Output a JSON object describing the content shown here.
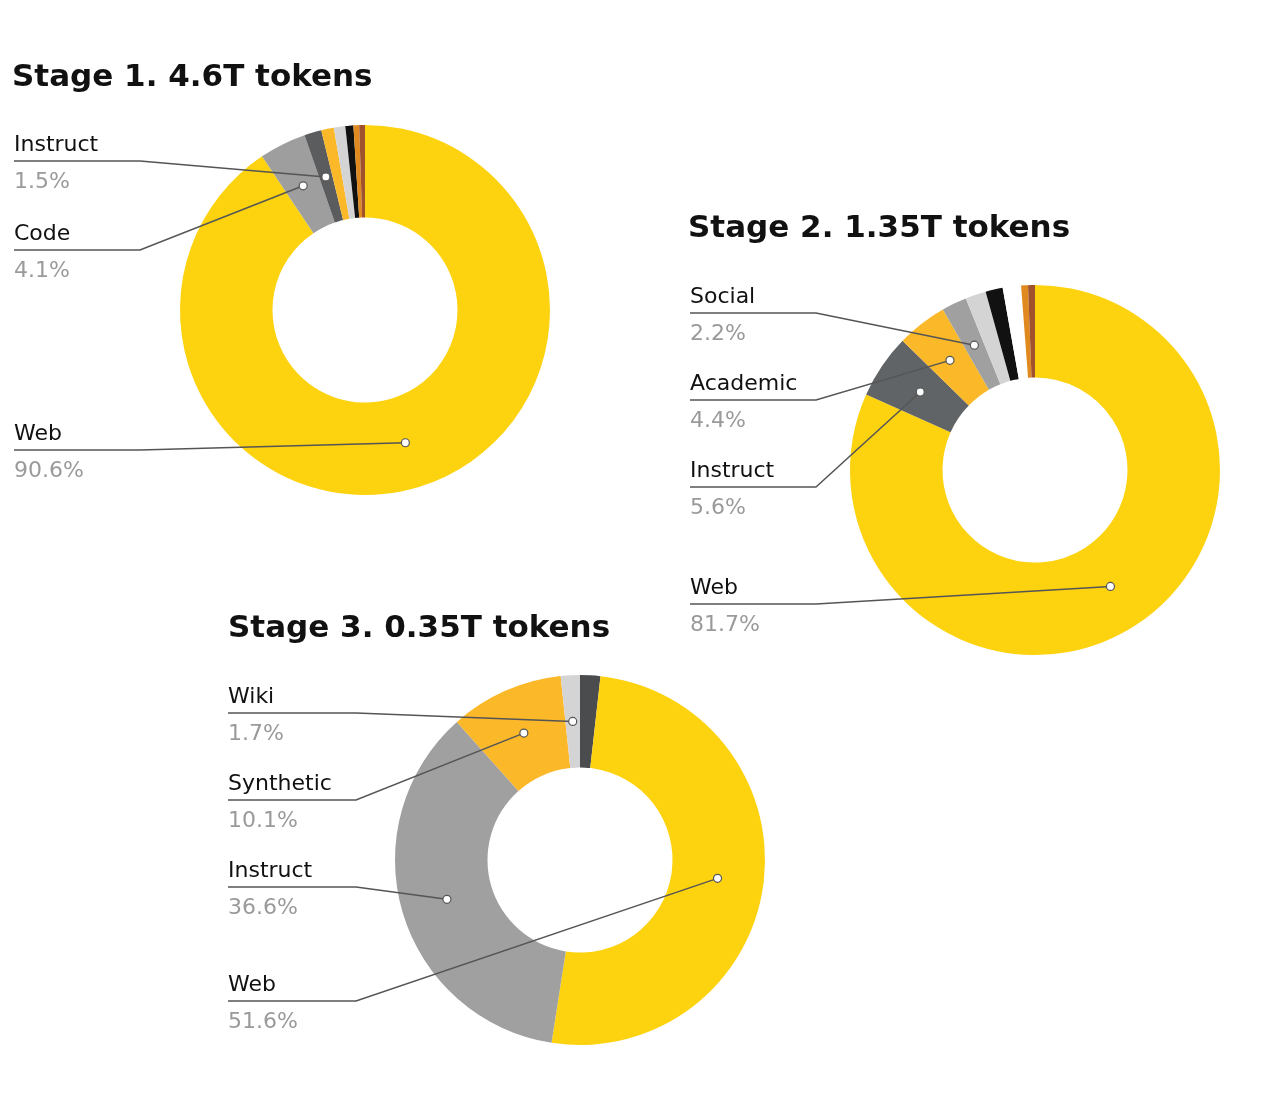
{
  "chart_data": [
    {
      "type": "doughnut",
      "title": "Stage 1. 4.6T tokens",
      "categories": [
        "Web",
        "Code",
        "Instruct",
        null,
        null,
        null,
        null,
        null
      ],
      "values": [
        90.6,
        4.1,
        1.5,
        1.1,
        1.0,
        0.7,
        0.5,
        0.5
      ],
      "value_labels": [
        "90.6%",
        "4.1%",
        "1.5%",
        null,
        null,
        null,
        null,
        null
      ],
      "colors": [
        "#fdd20f",
        "#9e9e9e",
        "#5a5c5e",
        "#fbb828",
        "#d4d4d4",
        "#111111",
        "#e0891f",
        "#a0522d"
      ],
      "data_labels": true
    },
    {
      "type": "doughnut",
      "title": "Stage 2. 1.35T tokens",
      "categories": [
        "Web",
        "Instruct",
        "Academic",
        "Social",
        null,
        null,
        null,
        null,
        null
      ],
      "values": [
        81.7,
        5.6,
        4.4,
        2.2,
        1.8,
        1.5,
        1.6,
        0.6,
        0.6
      ],
      "value_labels": [
        "81.7%",
        "5.6%",
        "4.4%",
        "2.2%",
        null,
        null,
        null,
        null,
        null
      ],
      "colors": [
        "#fdd20f",
        "#606466",
        "#fbb828",
        "#a0a0a0",
        "#d4d4d4",
        "#111111",
        "#ffffff",
        "#e0891f",
        "#a0522d"
      ],
      "data_labels": true
    },
    {
      "type": "doughnut",
      "title": "Stage 3. 0.35T tokens",
      "categories": [
        null,
        "Web",
        "Instruct",
        "Synthetic",
        "Wiki"
      ],
      "values": [
        1.8,
        51.6,
        36.6,
        10.1,
        1.7
      ],
      "value_labels": [
        null,
        "51.6%",
        "36.6%",
        "10.1%",
        "1.7%"
      ],
      "colors": [
        "#4a4c4e",
        "#fdd20f",
        "#a0a0a0",
        "#fbb828",
        "#d4d4d4"
      ],
      "data_labels": true
    }
  ]
}
